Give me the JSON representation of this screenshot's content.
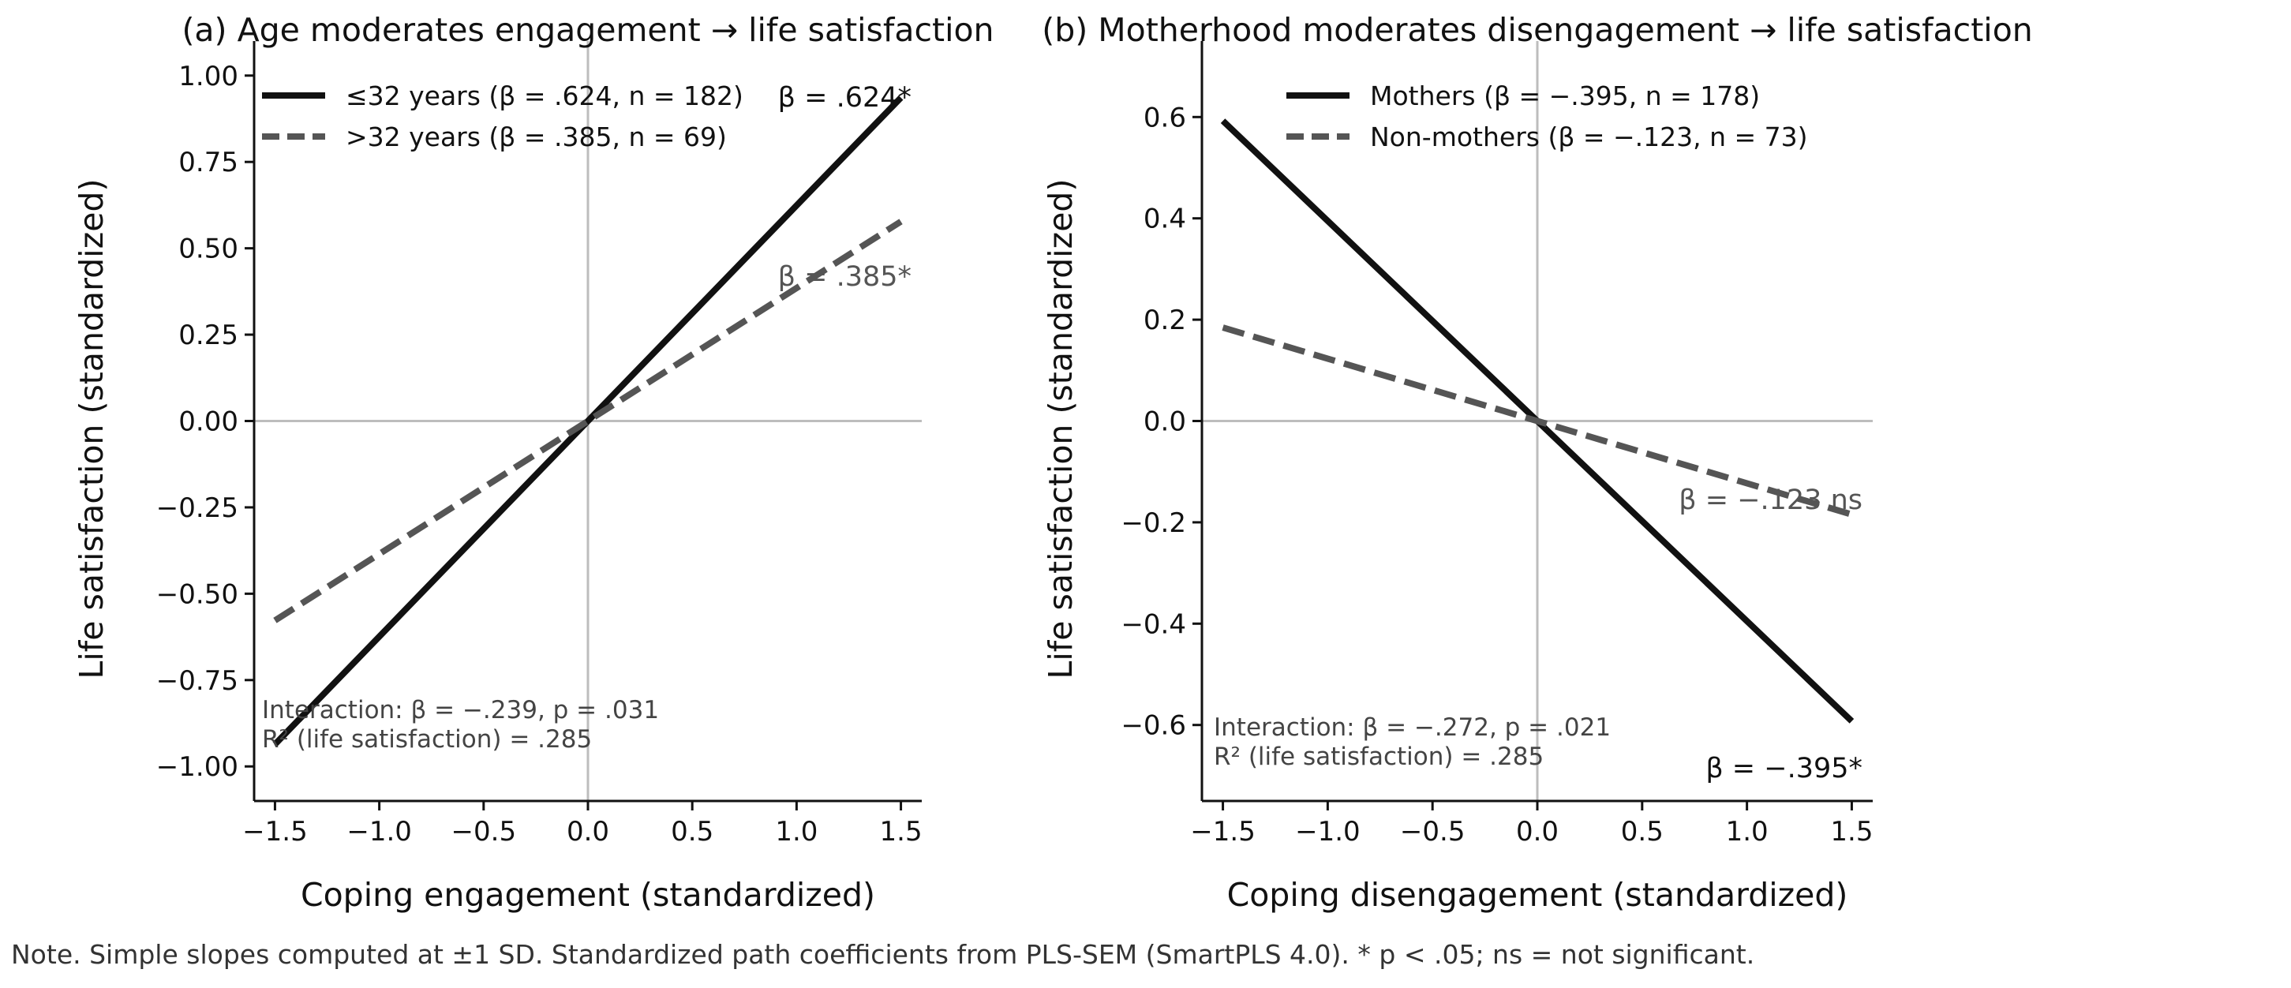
{
  "chart_data": [
    {
      "type": "line",
      "title": "(a) Age moderates engagement → life satisfaction",
      "xlabel": "Coping engagement (standardized)",
      "ylabel": "Life satisfaction (standardized)",
      "xlim": [
        -1.6,
        1.6
      ],
      "ylim": [
        -1.1,
        1.1
      ],
      "xticks": [
        -1.5,
        -1.0,
        -0.5,
        0.0,
        0.5,
        1.0,
        1.5
      ],
      "xtick_labels": [
        "−1.5",
        "−1.0",
        "−0.5",
        "0.0",
        "0.5",
        "1.0",
        "1.5"
      ],
      "yticks": [
        -1.0,
        -0.75,
        -0.5,
        -0.25,
        0.0,
        0.25,
        0.5,
        0.75,
        1.0
      ],
      "ytick_labels": [
        "−1.00",
        "−0.75",
        "−0.50",
        "−0.25",
        "0.00",
        "0.25",
        "0.50",
        "0.75",
        "1.00"
      ],
      "grid": false,
      "legend_position": "top-left",
      "series": [
        {
          "name": "≤32 years (β = .624, n = 182)",
          "x": [
            -1.5,
            1.5
          ],
          "y": [
            -0.936,
            0.936
          ],
          "color": "#111111",
          "dash": "solid",
          "slope_label": "β = .624*"
        },
        {
          "name": ">32 years (β = .385, n = 69)",
          "x": [
            -1.5,
            1.5
          ],
          "y": [
            -0.5775,
            0.5775
          ],
          "color": "#555555",
          "dash": "dashed",
          "slope_label": "β = .385*"
        }
      ],
      "annotations": [
        "Interaction: β = −.239, p = .031",
        "R² (life satisfaction) = .285"
      ]
    },
    {
      "type": "line",
      "title": "(b) Motherhood moderates disengagement → life satisfaction",
      "xlabel": "Coping disengagement (standardized)",
      "ylabel": "Life satisfaction (standardized)",
      "xlim": [
        -1.6,
        1.6
      ],
      "ylim": [
        -0.75,
        0.75
      ],
      "xticks": [
        -1.5,
        -1.0,
        -0.5,
        0.0,
        0.5,
        1.0,
        1.5
      ],
      "xtick_labels": [
        "−1.5",
        "−1.0",
        "−0.5",
        "0.0",
        "0.5",
        "1.0",
        "1.5"
      ],
      "yticks": [
        -0.6,
        -0.4,
        -0.2,
        0.0,
        0.2,
        0.4,
        0.6
      ],
      "ytick_labels": [
        "−0.6",
        "−0.4",
        "−0.2",
        "0.0",
        "0.2",
        "0.4",
        "0.6"
      ],
      "grid": false,
      "legend_position": "top-left",
      "series": [
        {
          "name": "Mothers (β = −.395, n = 178)",
          "x": [
            -1.5,
            1.5
          ],
          "y": [
            0.5925,
            -0.5925
          ],
          "color": "#111111",
          "dash": "solid",
          "slope_label": "β = −.395*"
        },
        {
          "name": "Non-mothers (β = −.123, n = 73)",
          "x": [
            -1.5,
            1.5
          ],
          "y": [
            0.1845,
            -0.1845
          ],
          "color": "#555555",
          "dash": "dashed",
          "slope_label": "β = −.123 ns"
        }
      ],
      "annotations": [
        "Interaction: β = −.272, p = .021",
        "R² (life satisfaction) = .285"
      ]
    }
  ],
  "note": "Note. Simple slopes computed at ±1 SD. Standardized path coefficients from PLS-SEM (SmartPLS 4.0). * p < .05; ns = not significant."
}
